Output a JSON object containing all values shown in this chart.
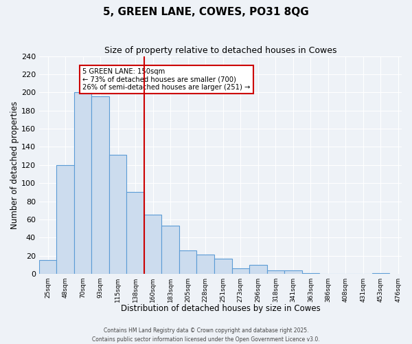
{
  "title": "5, GREEN LANE, COWES, PO31 8QG",
  "subtitle": "Size of property relative to detached houses in Cowes",
  "xlabel": "Distribution of detached houses by size in Cowes",
  "ylabel": "Number of detached properties",
  "bar_values": [
    15,
    120,
    200,
    196,
    131,
    90,
    65,
    53,
    26,
    21,
    17,
    6,
    10,
    4,
    4,
    1,
    0,
    0,
    0,
    1
  ],
  "bin_labels": [
    "25sqm",
    "48sqm",
    "70sqm",
    "93sqm",
    "115sqm",
    "138sqm",
    "160sqm",
    "183sqm",
    "205sqm",
    "228sqm",
    "251sqm",
    "273sqm",
    "296sqm",
    "318sqm",
    "341sqm",
    "363sqm",
    "386sqm",
    "408sqm",
    "431sqm",
    "453sqm",
    "476sqm"
  ],
  "bar_color": "#ccdcee",
  "bar_edge_color": "#5b9bd5",
  "property_line_x": 5.5,
  "property_line_color": "#cc0000",
  "annotation_title": "5 GREEN LANE: 150sqm",
  "annotation_line1": "← 73% of detached houses are smaller (700)",
  "annotation_line2": "26% of semi-detached houses are larger (251) →",
  "annotation_box_color": "#ffffff",
  "annotation_box_edge_color": "#cc0000",
  "ylim": [
    0,
    240
  ],
  "yticks": [
    0,
    20,
    40,
    60,
    80,
    100,
    120,
    140,
    160,
    180,
    200,
    220,
    240
  ],
  "background_color": "#eef2f7",
  "grid_color": "#ffffff",
  "footer_line1": "Contains HM Land Registry data © Crown copyright and database right 2025.",
  "footer_line2": "Contains public sector information licensed under the Open Government Licence v3.0."
}
